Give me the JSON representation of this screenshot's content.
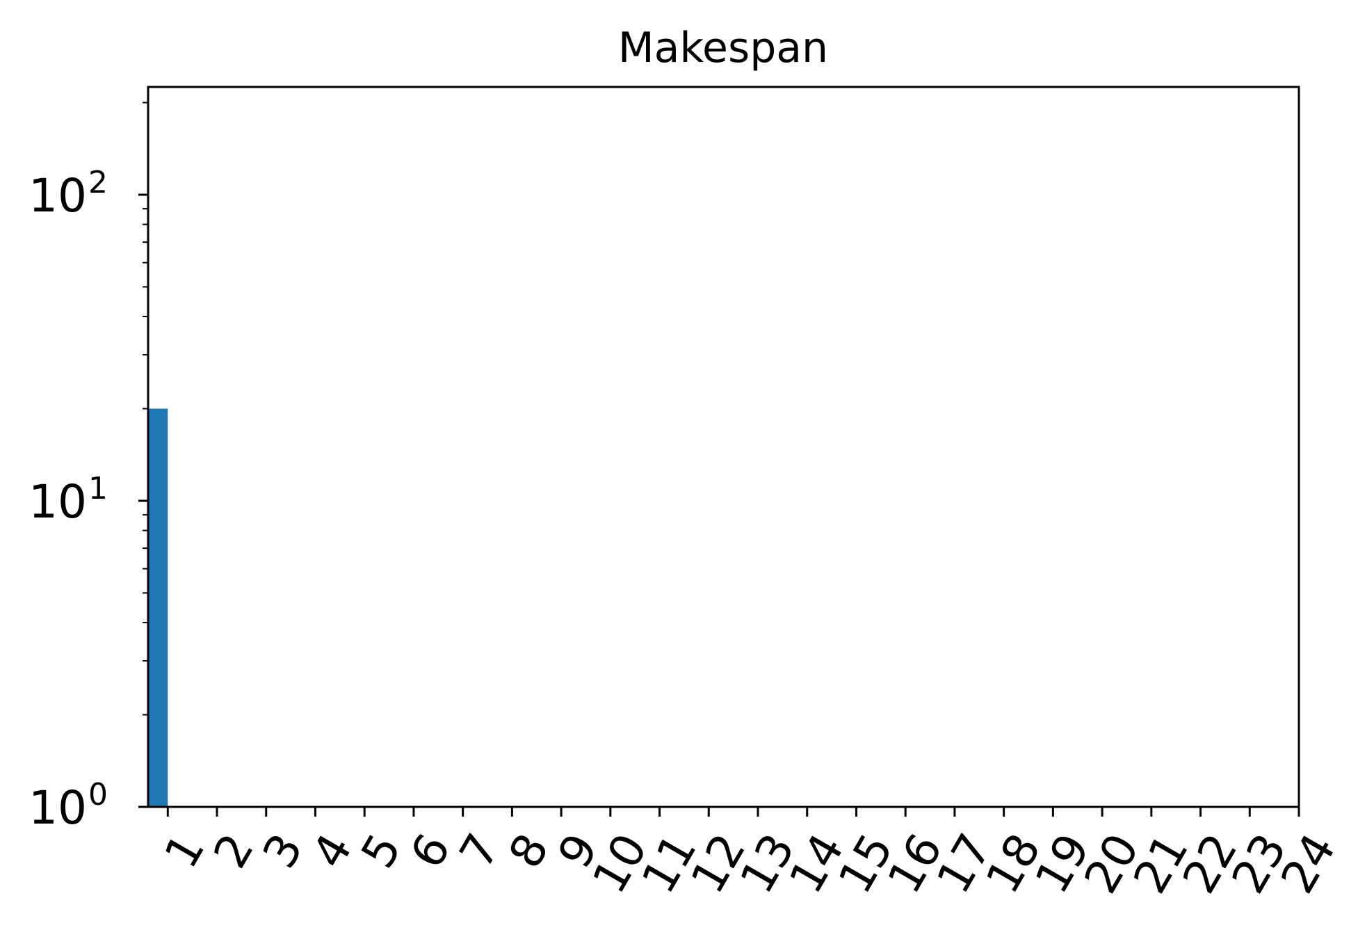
{
  "chart_data": {
    "type": "bar",
    "title": "Makespan",
    "xlabel": "",
    "ylabel": "",
    "yscale": "log",
    "ylim": [
      1,
      225
    ],
    "xlim": [
      0.6,
      24
    ],
    "categories": [
      "1",
      "2",
      "3",
      "4",
      "5",
      "6",
      "7",
      "8",
      "9",
      "10",
      "11",
      "12",
      "13",
      "14",
      "15",
      "16",
      "17",
      "18",
      "19",
      "20",
      "21",
      "22",
      "23",
      "24"
    ],
    "values": [
      20,
      null,
      null,
      null,
      null,
      null,
      null,
      null,
      null,
      null,
      null,
      null,
      null,
      null,
      null,
      null,
      null,
      null,
      null,
      null,
      null,
      null,
      null,
      null
    ],
    "y_ticks": [
      {
        "value": 1,
        "base": "10",
        "exp": "0"
      },
      {
        "value": 10,
        "base": "10",
        "exp": "1"
      },
      {
        "value": 100,
        "base": "10",
        "exp": "2"
      }
    ],
    "bar_color": "#1f77b4",
    "grid": false,
    "legend": "none"
  }
}
